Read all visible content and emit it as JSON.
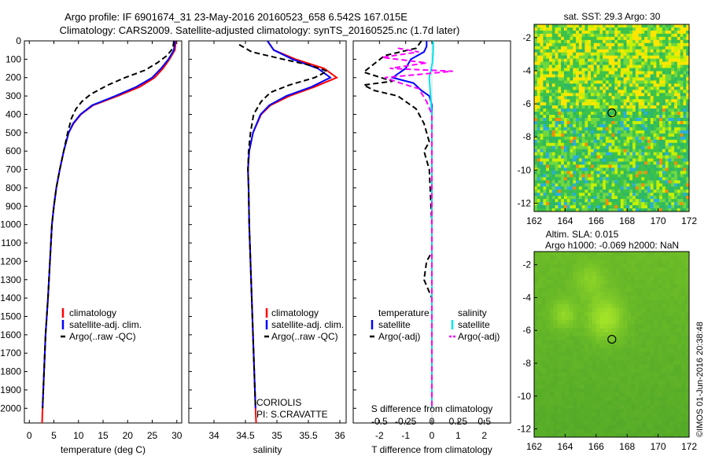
{
  "title": {
    "line1": "Argo profile: IF 6901674_31 23-May-2016 20160523_658 6.542S 167.015E",
    "line2": "Climatology: CARS2009. Satellite-adjusted climatology: synTS_20160525.nc (1.7d later)"
  },
  "colors": {
    "climatology": "#ff0000",
    "satellite": "#0000ff",
    "argo": "#000000",
    "salinity_satellite": "#00e5ee",
    "salinity_argo": "#ff00ff"
  },
  "chart_data": [
    {
      "id": "temperature",
      "type": "line",
      "xlabel": "temperature (deg C)",
      "xlim": [
        -1,
        31
      ],
      "xticks": [
        0,
        5,
        10,
        15,
        20,
        25,
        30
      ],
      "ylim": [
        2080,
        0
      ],
      "yticks": [
        0,
        100,
        200,
        300,
        400,
        500,
        600,
        700,
        800,
        900,
        1000,
        1100,
        1200,
        1300,
        1400,
        1500,
        1600,
        1700,
        1800,
        1900,
        2000
      ],
      "legend": [
        "climatology",
        "satellite-adj. clim.",
        "Argo(..raw -QC)"
      ],
      "series": [
        {
          "name": "climatology",
          "style": "solid",
          "color": "#ff0000",
          "points": [
            [
              29.8,
              0
            ],
            [
              29.6,
              50
            ],
            [
              28.5,
              100
            ],
            [
              27.2,
              150
            ],
            [
              25.5,
              200
            ],
            [
              22.5,
              250
            ],
            [
              18,
              300
            ],
            [
              13,
              350
            ],
            [
              10.5,
              400
            ],
            [
              9,
              450
            ],
            [
              8,
              500
            ],
            [
              7,
              600
            ],
            [
              6.2,
              700
            ],
            [
              5.5,
              800
            ],
            [
              5,
              900
            ],
            [
              4.6,
              1000
            ],
            [
              4.2,
              1200
            ],
            [
              3.8,
              1400
            ],
            [
              3.3,
              1600
            ],
            [
              3,
              1800
            ],
            [
              2.7,
              2000
            ],
            [
              2.6,
              2080
            ]
          ]
        },
        {
          "name": "satellite-adj. clim.",
          "style": "solid",
          "color": "#0000ff",
          "points": [
            [
              29.6,
              0
            ],
            [
              29.4,
              50
            ],
            [
              28.3,
              100
            ],
            [
              26.8,
              150
            ],
            [
              25,
              200
            ],
            [
              21.8,
              250
            ],
            [
              17.5,
              300
            ],
            [
              12.8,
              350
            ],
            [
              10.4,
              400
            ],
            [
              8.9,
              450
            ],
            [
              8,
              500
            ],
            [
              7,
              600
            ],
            [
              6.2,
              700
            ],
            [
              5.5,
              800
            ],
            [
              5,
              900
            ],
            [
              4.6,
              1000
            ],
            [
              4.2,
              1200
            ],
            [
              3.8,
              1400
            ],
            [
              3.3,
              1600
            ],
            [
              3,
              1800
            ],
            [
              2.7,
              2000
            ]
          ]
        },
        {
          "name": "Argo(..raw -QC)",
          "style": "dashed",
          "color": "#000000",
          "points": [
            [
              29.4,
              0
            ],
            [
              29.2,
              40
            ],
            [
              28,
              80
            ],
            [
              26,
              120
            ],
            [
              23.5,
              160
            ],
            [
              19.5,
              200
            ],
            [
              16,
              240
            ],
            [
              12.5,
              290
            ],
            [
              10.7,
              330
            ],
            [
              9.5,
              370
            ],
            [
              8.6,
              420
            ],
            [
              7.8,
              500
            ],
            [
              7,
              600
            ],
            [
              6.2,
              700
            ],
            [
              5.5,
              800
            ],
            [
              5,
              900
            ],
            [
              4.6,
              1000
            ],
            [
              4.2,
              1200
            ],
            [
              3.8,
              1400
            ],
            [
              3.3,
              1600
            ],
            [
              3,
              1800
            ],
            [
              2.7,
              2000
            ]
          ]
        }
      ]
    },
    {
      "id": "salinity",
      "type": "line",
      "xlabel": "salinity",
      "xlim": [
        33.6,
        36.1
      ],
      "xticks": [
        34,
        34.5,
        35,
        35.5,
        36
      ],
      "xtick_labels": [
        "34",
        "34.5",
        "35",
        "35.5",
        "36"
      ],
      "ylim": [
        2080,
        0
      ],
      "legend": [
        "climatology",
        "satellite-adj. clim.",
        "Argo(..raw -QC)"
      ],
      "annotation": [
        "CORIOLIS",
        "PI: S.CRAVATTE"
      ],
      "series": [
        {
          "name": "climatology",
          "style": "solid",
          "color": "#ff0000",
          "points": [
            [
              34.85,
              0
            ],
            [
              34.95,
              50
            ],
            [
              35.3,
              100
            ],
            [
              35.75,
              150
            ],
            [
              35.95,
              200
            ],
            [
              35.6,
              250
            ],
            [
              35.2,
              300
            ],
            [
              34.9,
              350
            ],
            [
              34.75,
              400
            ],
            [
              34.62,
              500
            ],
            [
              34.56,
              600
            ],
            [
              34.54,
              700
            ],
            [
              34.55,
              800
            ],
            [
              34.56,
              1000
            ],
            [
              34.58,
              1200
            ],
            [
              34.6,
              1400
            ],
            [
              34.62,
              1600
            ],
            [
              34.64,
              1800
            ],
            [
              34.66,
              2000
            ],
            [
              34.67,
              2080
            ]
          ]
        },
        {
          "name": "satellite-adj. clim.",
          "style": "solid",
          "color": "#0000ff",
          "points": [
            [
              34.85,
              0
            ],
            [
              34.95,
              50
            ],
            [
              35.25,
              100
            ],
            [
              35.65,
              150
            ],
            [
              35.85,
              200
            ],
            [
              35.55,
              250
            ],
            [
              35.15,
              300
            ],
            [
              34.88,
              350
            ],
            [
              34.74,
              400
            ],
            [
              34.62,
              500
            ],
            [
              34.56,
              600
            ],
            [
              34.54,
              700
            ],
            [
              34.55,
              800
            ],
            [
              34.56,
              1000
            ],
            [
              34.58,
              1200
            ],
            [
              34.6,
              1400
            ],
            [
              34.62,
              1600
            ],
            [
              34.64,
              1800
            ],
            [
              34.66,
              2000
            ]
          ]
        },
        {
          "name": "Argo(..raw -QC)",
          "style": "dashed",
          "color": "#000000",
          "points": [
            [
              34.4,
              20
            ],
            [
              34.6,
              60
            ],
            [
              35.1,
              100
            ],
            [
              35.5,
              130
            ],
            [
              35.8,
              165
            ],
            [
              35.6,
              200
            ],
            [
              35.2,
              240
            ],
            [
              34.9,
              280
            ],
            [
              34.75,
              330
            ],
            [
              34.63,
              400
            ],
            [
              34.58,
              500
            ],
            [
              34.55,
              600
            ],
            [
              34.54,
              700
            ],
            [
              34.55,
              800
            ],
            [
              34.56,
              1000
            ],
            [
              34.58,
              1200
            ],
            [
              34.6,
              1400
            ],
            [
              34.62,
              1600
            ],
            [
              34.64,
              1800
            ],
            [
              34.66,
              2000
            ]
          ]
        }
      ]
    },
    {
      "id": "difference",
      "type": "line",
      "xlabel": "T difference from climatology",
      "xlabel_top": "S difference from climatology",
      "xlim": [
        -3,
        3
      ],
      "xticks": [
        -2,
        -1,
        0,
        1,
        2
      ],
      "top_ticks": [
        -0.5,
        -0.25,
        0,
        0.25,
        0.5
      ],
      "top_tick_labels": [
        "-0.5",
        "-0.25",
        "0",
        "0.25",
        "0.5"
      ],
      "ylim": [
        2080,
        0
      ],
      "legend_left_title": "temperature",
      "legend_right_title": "salinity",
      "legend_left": [
        "satellite",
        "Argo(-adj)"
      ],
      "legend_right": [
        "satellite",
        "Argo(-adj)"
      ],
      "series": [
        {
          "name": "T satellite",
          "style": "solid",
          "color": "#0000ff",
          "points": [
            [
              -0.2,
              0
            ],
            [
              -0.2,
              30
            ],
            [
              -0.3,
              60
            ],
            [
              -0.8,
              100
            ],
            [
              -1,
              150
            ],
            [
              -1.5,
              200
            ],
            [
              -0.7,
              230
            ],
            [
              -0.4,
              270
            ],
            [
              -0.1,
              300
            ],
            [
              0,
              350
            ],
            [
              0,
              400
            ],
            [
              0,
              600
            ],
            [
              0,
              1000
            ],
            [
              0,
              1500
            ],
            [
              0,
              2000
            ]
          ]
        },
        {
          "name": "T Argo(-adj)",
          "style": "dashed",
          "color": "#000000",
          "points": [
            [
              -0.4,
              0
            ],
            [
              -0.6,
              40
            ],
            [
              -1.8,
              80
            ],
            [
              -2.6,
              170
            ],
            [
              -1.5,
              220
            ],
            [
              -2.6,
              240
            ],
            [
              -2.2,
              270
            ],
            [
              -1.3,
              300
            ],
            [
              -0.6,
              370
            ],
            [
              -0.3,
              450
            ],
            [
              -0.1,
              550
            ],
            [
              -0.3,
              600
            ],
            [
              -0.1,
              700
            ],
            [
              0,
              1000
            ],
            [
              0,
              1150
            ],
            [
              -0.2,
              1200
            ],
            [
              -0.3,
              1300
            ],
            [
              0,
              1400
            ],
            [
              0,
              1500
            ],
            [
              0,
              2000
            ]
          ]
        },
        {
          "name": "S satellite",
          "style": "solid",
          "color": "#00e5ee",
          "points": [
            [
              0.05,
              0
            ],
            [
              0.05,
              60
            ],
            [
              0.02,
              120
            ],
            [
              -0.1,
              200
            ],
            [
              -0.05,
              300
            ],
            [
              0,
              400
            ],
            [
              0,
              1000
            ],
            [
              0,
              1300
            ],
            [
              0,
              2000
            ]
          ]
        },
        {
          "name": "S Argo(-adj)",
          "style": "dashed",
          "color": "#ff00ff",
          "points": [
            [
              -1.3,
              40
            ],
            [
              -0.5,
              60
            ],
            [
              -1.9,
              90
            ],
            [
              -0.2,
              120
            ],
            [
              -1.6,
              150
            ],
            [
              0.8,
              165
            ],
            [
              -1.8,
              200
            ],
            [
              -1.2,
              230
            ],
            [
              -0.5,
              260
            ],
            [
              -0.2,
              330
            ],
            [
              0,
              400
            ],
            [
              0,
              600
            ],
            [
              0,
              2000
            ]
          ]
        }
      ]
    },
    {
      "id": "sst-map",
      "type": "heatmap",
      "title": "sat. SST: 29.3 Argo: 30",
      "xlim": [
        162,
        172
      ],
      "ylim": [
        -12.5,
        -1.2
      ],
      "xticks": [
        162,
        164,
        166,
        168,
        170,
        172
      ],
      "yticks": [
        -2,
        -4,
        -6,
        -8,
        -10,
        -12
      ],
      "marker": [
        167.015,
        -6.542
      ]
    },
    {
      "id": "sla-map",
      "type": "heatmap",
      "title_line1": "Altim. SLA: 0.015",
      "title_line2": "Argo h1000: -0.069 h2000: NaN",
      "xlim": [
        162,
        172
      ],
      "ylim": [
        -12.5,
        -1.2
      ],
      "xticks": [
        162,
        164,
        166,
        168,
        170,
        172
      ],
      "yticks": [
        -2,
        -4,
        -6,
        -8,
        -10,
        -12
      ],
      "marker": [
        167.015,
        -6.542
      ]
    }
  ],
  "credit": "©IMOS 01-Jun-2016 20:38:48"
}
